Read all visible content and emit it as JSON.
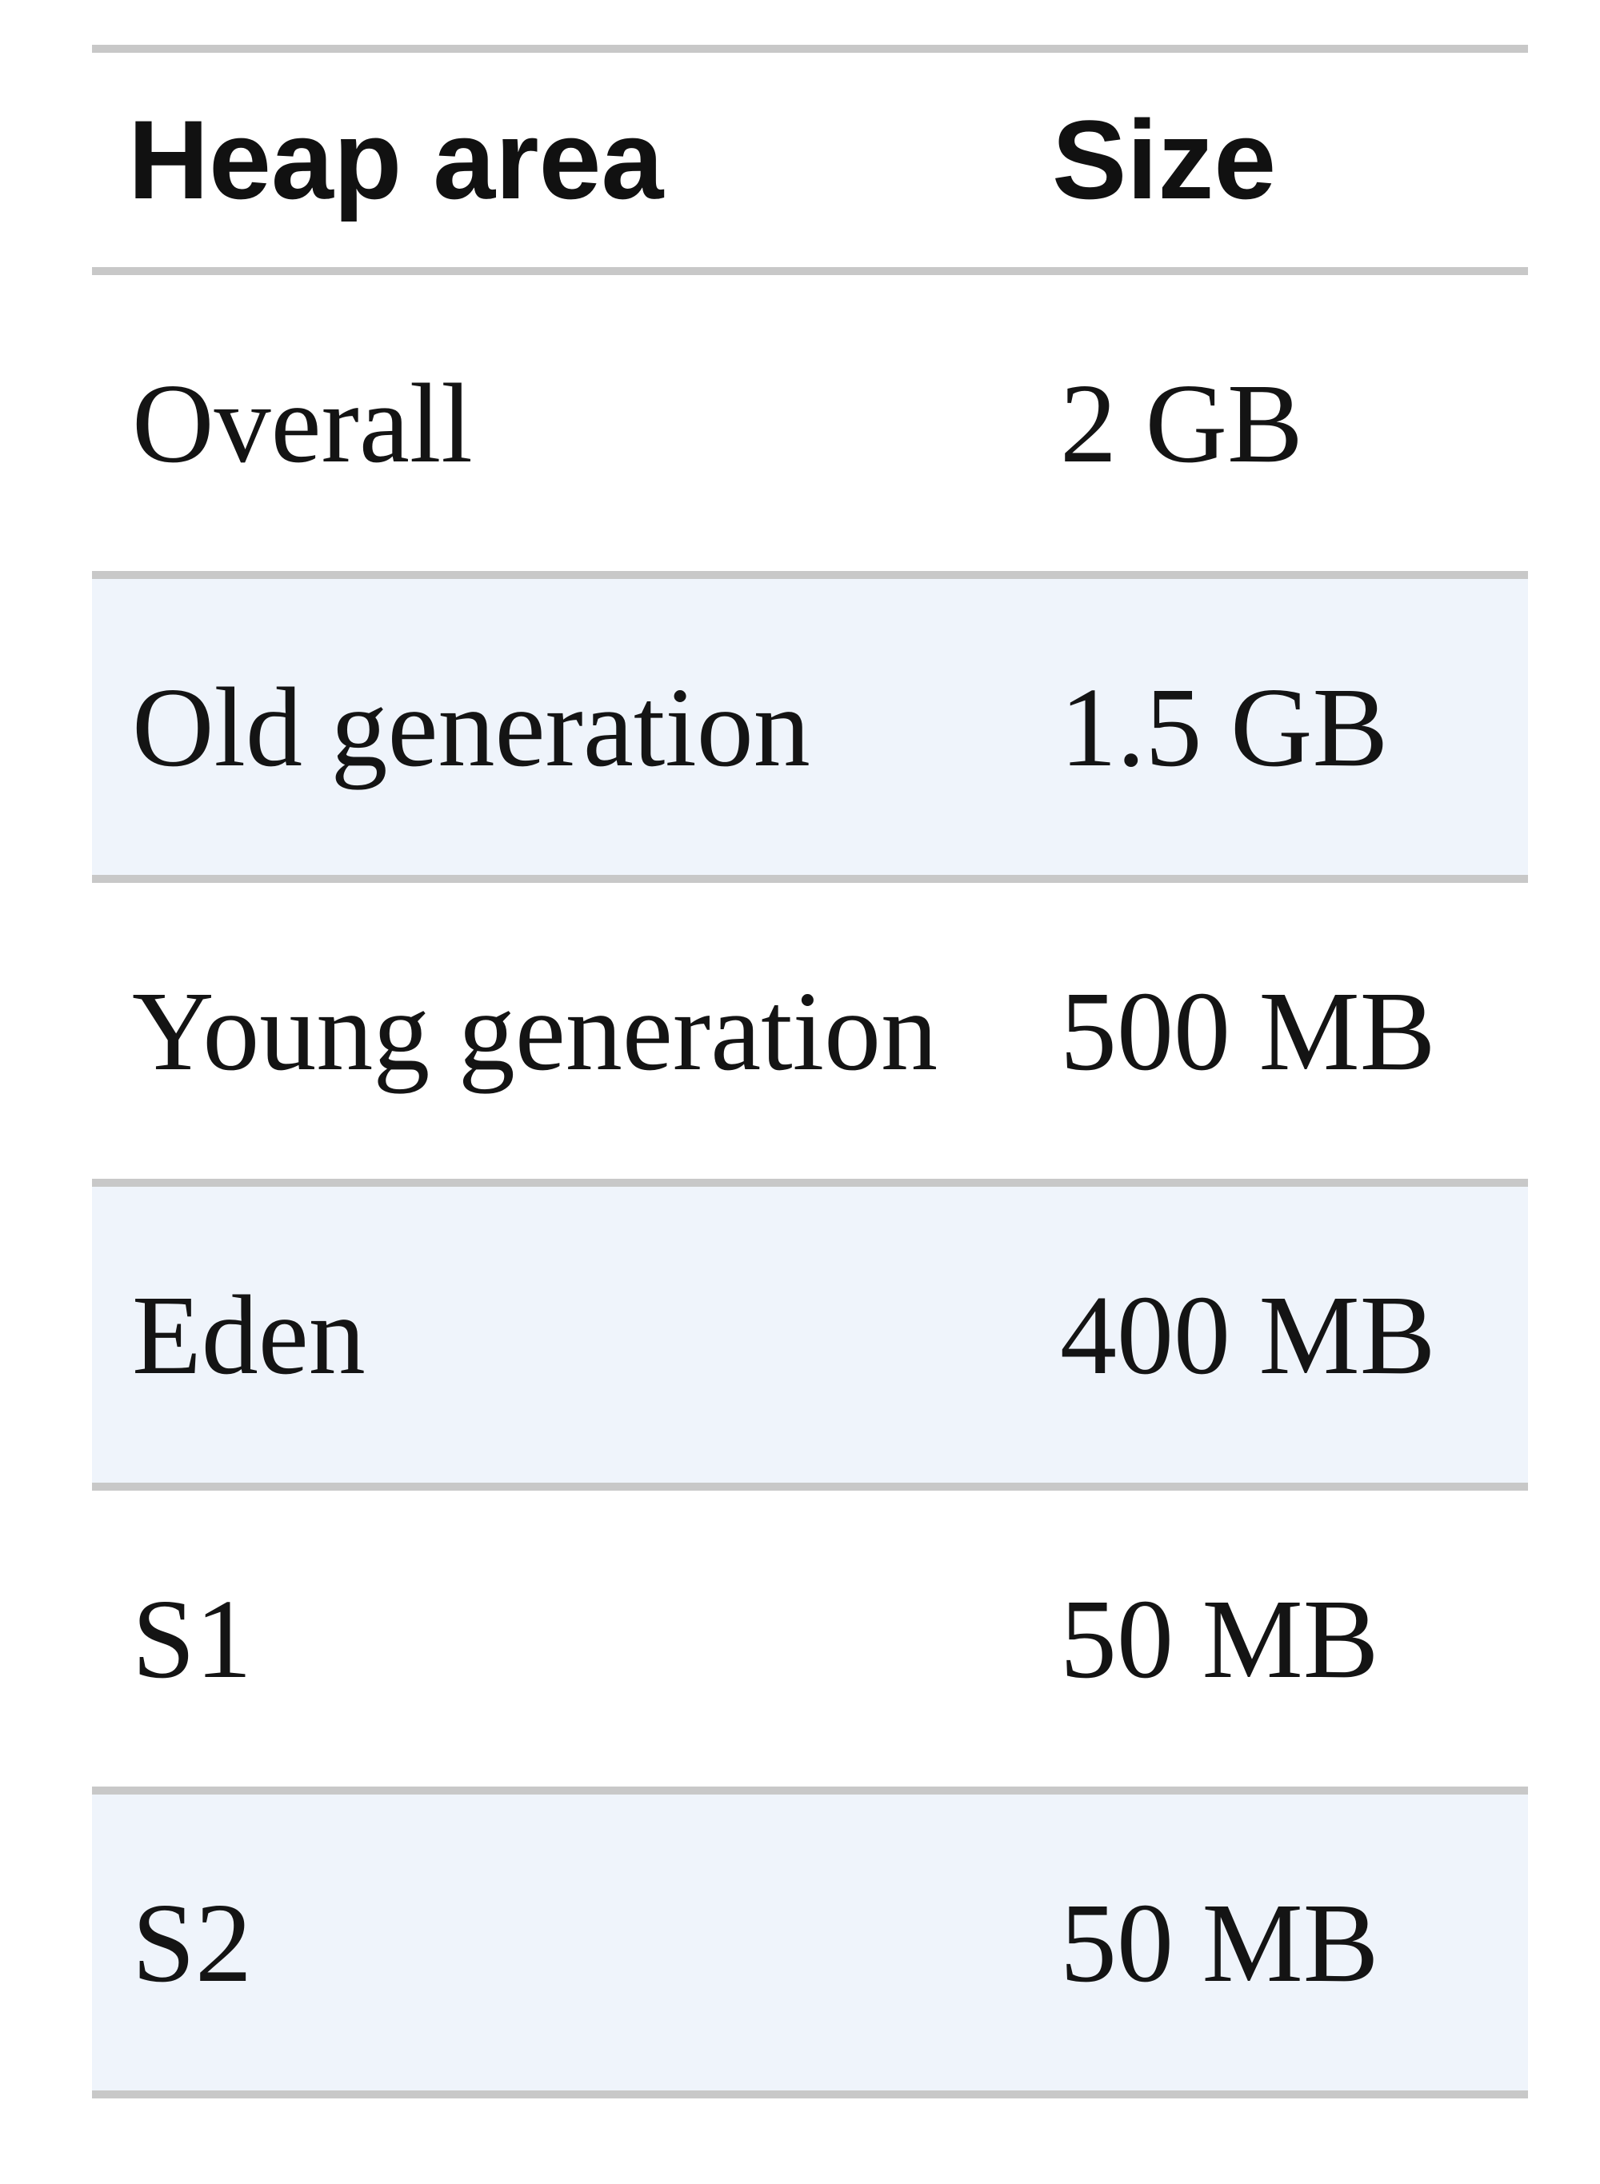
{
  "table": {
    "headers": {
      "area": "Heap area",
      "size": "Size"
    },
    "rows": [
      {
        "area": "Overall",
        "size": "2 GB"
      },
      {
        "area": "Old generation",
        "size": "1.5 GB"
      },
      {
        "area": "Young generation",
        "size": "500 MB"
      },
      {
        "area": "Eden",
        "size": "400 MB"
      },
      {
        "area": "S1",
        "size": "50 MB"
      },
      {
        "area": "S2",
        "size": "50 MB"
      }
    ]
  },
  "colors": {
    "rule": "#c8c8c8",
    "stripe": "#eff4fb",
    "text": "#141414"
  }
}
